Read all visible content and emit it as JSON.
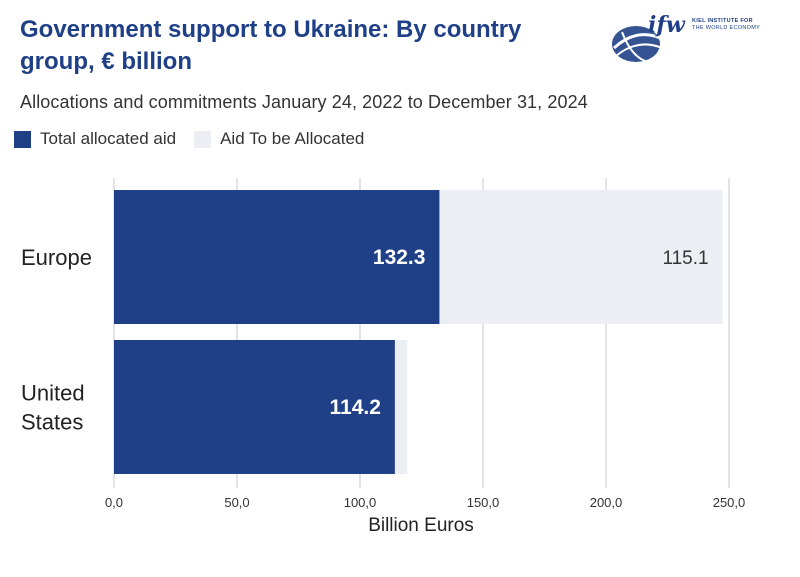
{
  "header": {
    "title": "Government support to Ukraine: By country group, € billion",
    "subtitle": "Allocations and commitments January 24, 2022 to December 31, 2024"
  },
  "logo": {
    "mark": "ifw",
    "line1": "KIEL INSTITUTE FOR",
    "line2": "THE WORLD ECONOMY"
  },
  "legend": [
    {
      "label": "Total allocated aid",
      "color": "#1f3f87"
    },
    {
      "label": "Aid To be Allocated",
      "color": "#ebeef3"
    }
  ],
  "chart_data": {
    "type": "bar",
    "orientation": "horizontal",
    "stacked": true,
    "categories": [
      [
        "Europe"
      ],
      [
        "United",
        "States"
      ]
    ],
    "series": [
      {
        "name": "Total allocated aid",
        "values": [
          132.3,
          114.2
        ],
        "labels": [
          "132.3",
          "114.2"
        ],
        "color": "#1f3f87",
        "label_color": "#ffffff"
      },
      {
        "name": "Aid To be Allocated",
        "values": [
          115.1,
          5.0
        ],
        "labels": [
          "115.1",
          ""
        ],
        "color": "#ebeef3",
        "label_color": "#333333"
      }
    ],
    "xlabel": "Billion Euros",
    "xlim": [
      0,
      250
    ],
    "xticks": [
      0,
      50,
      100,
      150,
      200,
      250
    ],
    "xtick_labels": [
      "0,0",
      "50,0",
      "100,0",
      "150,0",
      "200,0",
      "250,0"
    ],
    "grid": true
  }
}
